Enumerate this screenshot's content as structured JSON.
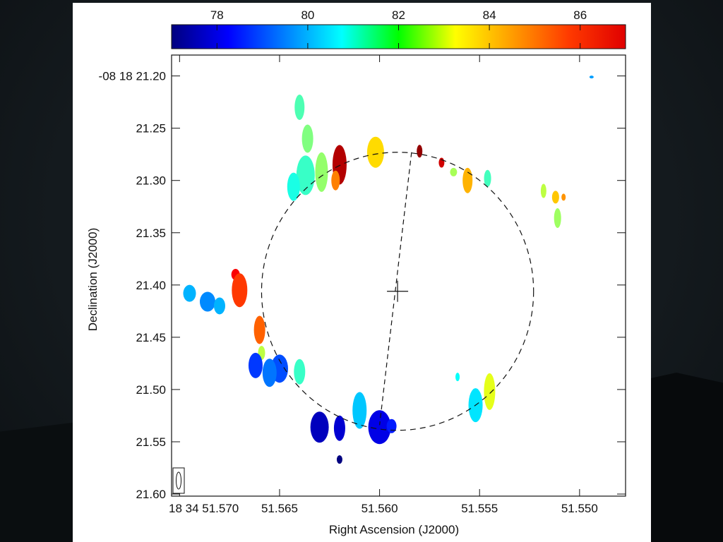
{
  "chart_data": {
    "type": "scatter",
    "xlabel": "Right Ascension (J2000)",
    "ylabel": "Declination (J2000)",
    "x_ticks": [
      {
        "value": 51.57,
        "label": "18 34 51.570"
      },
      {
        "value": 51.565,
        "label": "51.565"
      },
      {
        "value": 51.56,
        "label": "51.560"
      },
      {
        "value": 51.555,
        "label": "51.555"
      },
      {
        "value": 51.55,
        "label": "51.550"
      }
    ],
    "y_ticks": [
      {
        "value": 21.2,
        "label": "-08 18 21.20"
      },
      {
        "value": 21.25,
        "label": "21.25"
      },
      {
        "value": 21.3,
        "label": "21.30"
      },
      {
        "value": 21.35,
        "label": "21.35"
      },
      {
        "value": 21.4,
        "label": "21.40"
      },
      {
        "value": 21.45,
        "label": "21.45"
      },
      {
        "value": 21.5,
        "label": "21.50"
      },
      {
        "value": 21.55,
        "label": "21.55"
      },
      {
        "value": 21.6,
        "label": "21.60"
      }
    ],
    "xlim": [
      51.5704,
      51.5477
    ],
    "ylim": [
      21.602,
      21.18
    ],
    "colorbar": {
      "range": [
        77.0,
        87.0
      ],
      "ticks": [
        {
          "value": 78,
          "label": "78"
        },
        {
          "value": 80,
          "label": "80"
        },
        {
          "value": 82,
          "label": "82"
        },
        {
          "value": 84,
          "label": "84"
        },
        {
          "value": 86,
          "label": "86"
        }
      ]
    },
    "ellipse_fit": {
      "center_ra": 51.5591,
      "center_dec": 21.406,
      "ra_radius": 0.0068,
      "dec_radius": 0.133
    },
    "center_marker": {
      "ra": 51.5591,
      "dec": 21.406
    },
    "diameter_line": [
      {
        "ra": 51.5584,
        "dec": 21.273
      },
      {
        "ra": 51.56,
        "dec": 21.534
      }
    ],
    "points": [
      {
        "ra": 51.564,
        "dec": 21.23,
        "velocity": 81.5
      },
      {
        "ra": 51.5636,
        "dec": 21.26,
        "velocity": 82.0
      },
      {
        "ra": 51.5637,
        "dec": 21.295,
        "velocity": 81.3
      },
      {
        "ra": 51.5643,
        "dec": 21.306,
        "velocity": 81.0
      },
      {
        "ra": 51.5629,
        "dec": 21.292,
        "velocity": 82.2
      },
      {
        "ra": 51.562,
        "dec": 21.285,
        "velocity": 86.5
      },
      {
        "ra": 51.5622,
        "dec": 21.3,
        "velocity": 84.5
      },
      {
        "ra": 51.5602,
        "dec": 21.273,
        "velocity": 83.6
      },
      {
        "ra": 51.558,
        "dec": 21.272,
        "velocity": 86.8
      },
      {
        "ra": 51.5569,
        "dec": 21.283,
        "velocity": 86.2
      },
      {
        "ra": 51.5563,
        "dec": 21.292,
        "velocity": 82.4
      },
      {
        "ra": 51.5556,
        "dec": 21.3,
        "velocity": 84.0
      },
      {
        "ra": 51.5546,
        "dec": 21.298,
        "velocity": 81.4
      },
      {
        "ra": 51.5518,
        "dec": 21.31,
        "velocity": 82.6
      },
      {
        "ra": 51.5512,
        "dec": 21.316,
        "velocity": 83.8
      },
      {
        "ra": 51.5508,
        "dec": 21.316,
        "velocity": 84.3
      },
      {
        "ra": 51.5511,
        "dec": 21.336,
        "velocity": 82.3
      },
      {
        "ra": 51.5494,
        "dec": 21.201,
        "velocity": 79.8
      },
      {
        "ra": 51.5695,
        "dec": 21.408,
        "velocity": 80.0
      },
      {
        "ra": 51.5686,
        "dec": 21.416,
        "velocity": 79.6
      },
      {
        "ra": 51.568,
        "dec": 21.42,
        "velocity": 80.0
      },
      {
        "ra": 51.5672,
        "dec": 21.39,
        "velocity": 85.8
      },
      {
        "ra": 51.567,
        "dec": 21.405,
        "velocity": 85.2
      },
      {
        "ra": 51.566,
        "dec": 21.443,
        "velocity": 84.8
      },
      {
        "ra": 51.5659,
        "dec": 21.465,
        "velocity": 82.6
      },
      {
        "ra": 51.5662,
        "dec": 21.477,
        "velocity": 78.8
      },
      {
        "ra": 51.565,
        "dec": 21.48,
        "velocity": 79.0
      },
      {
        "ra": 51.5655,
        "dec": 21.484,
        "velocity": 79.4
      },
      {
        "ra": 51.564,
        "dec": 21.483,
        "velocity": 81.3
      },
      {
        "ra": 51.563,
        "dec": 21.536,
        "velocity": 77.6
      },
      {
        "ra": 51.562,
        "dec": 21.537,
        "velocity": 77.8
      },
      {
        "ra": 51.561,
        "dec": 21.52,
        "velocity": 80.2
      },
      {
        "ra": 51.56,
        "dec": 21.536,
        "velocity": 78.0
      },
      {
        "ra": 51.5594,
        "dec": 21.535,
        "velocity": 78.5
      },
      {
        "ra": 51.562,
        "dec": 21.567,
        "velocity": 77.0
      },
      {
        "ra": 51.5545,
        "dec": 21.502,
        "velocity": 83.0
      },
      {
        "ra": 51.5552,
        "dec": 21.515,
        "velocity": 80.5
      },
      {
        "ra": 51.5561,
        "dec": 21.488,
        "velocity": 80.8
      }
    ]
  }
}
